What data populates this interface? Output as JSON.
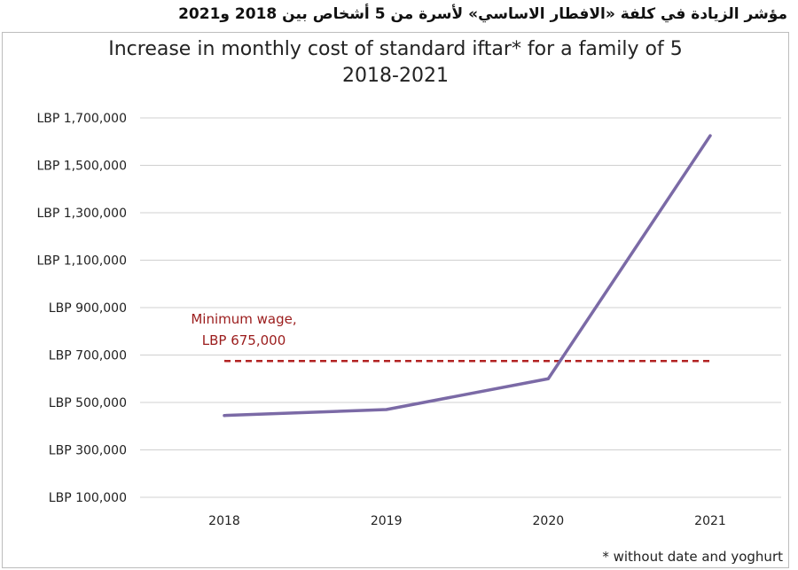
{
  "header": {
    "arabic_title": "مؤشر الزيادة في كلفة «الافطار الاساسي» لأسرة من 5 أشخاص بين 2018 و2021"
  },
  "chart_data": {
    "type": "line",
    "title_line1": "Increase in monthly cost of standard iftar* for a family of 5",
    "title_line2": "2018-2021",
    "categories": [
      "2018",
      "2019",
      "2020",
      "2021"
    ],
    "series": [
      {
        "values": [
          445000,
          470000,
          600000,
          1625000
        ],
        "color": "#7b6aa6"
      }
    ],
    "ylim": [
      100000,
      1700000
    ],
    "yticks": [
      100000,
      300000,
      500000,
      700000,
      900000,
      1100000,
      1300000,
      1500000,
      1700000
    ],
    "ytick_labels": [
      "LBP 100,000",
      "LBP 300,000",
      "LBP 500,000",
      "LBP 700,000",
      "LBP 900,000",
      "LBP 1,100,000",
      "LBP 1,300,000",
      "LBP 1,500,000",
      "LBP 1,700,000"
    ],
    "grid": true,
    "reference_line": {
      "value": 675000,
      "label_line1": "Minimum wage,",
      "label_line2": "LBP 675,000",
      "color": "#b22222"
    },
    "footnote": "* without date and yoghurt"
  }
}
